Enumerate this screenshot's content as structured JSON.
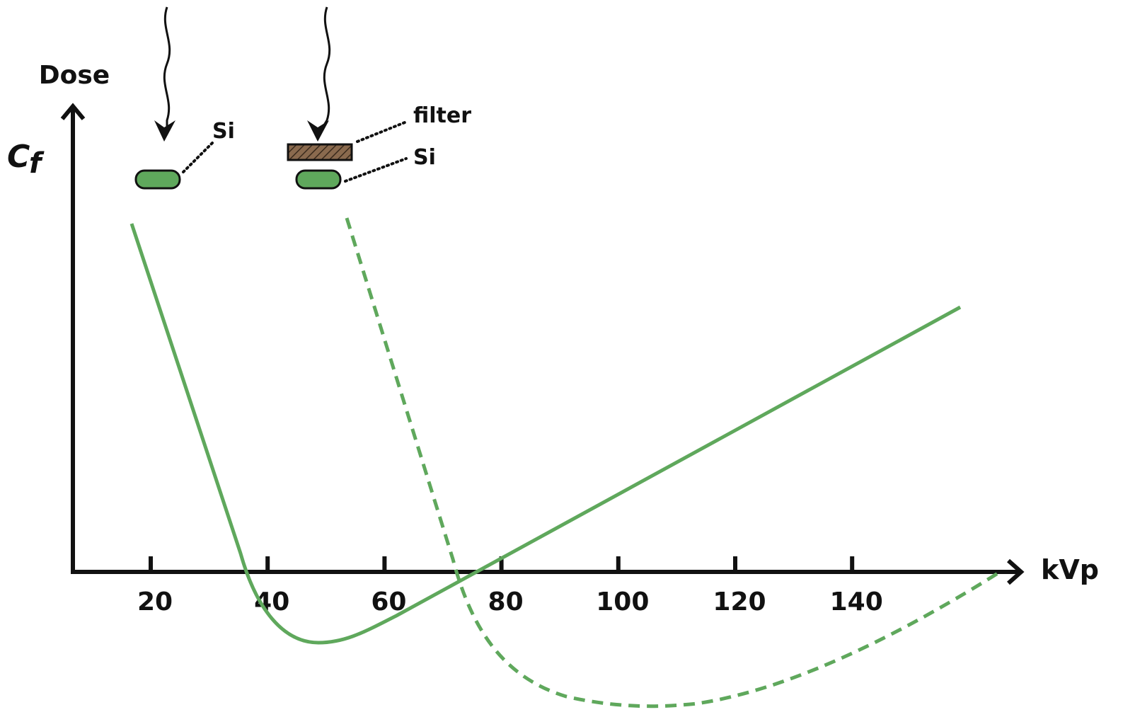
{
  "axes": {
    "y_label": "Dose",
    "cf_main": "C",
    "cf_sub": "f",
    "x_label": "kVp",
    "x_ticks": [
      "20",
      "40",
      "60",
      "80",
      "100",
      "120",
      "140"
    ]
  },
  "detectors": {
    "left_si": "Si",
    "filter": "filter",
    "right_si": "Si"
  }
}
